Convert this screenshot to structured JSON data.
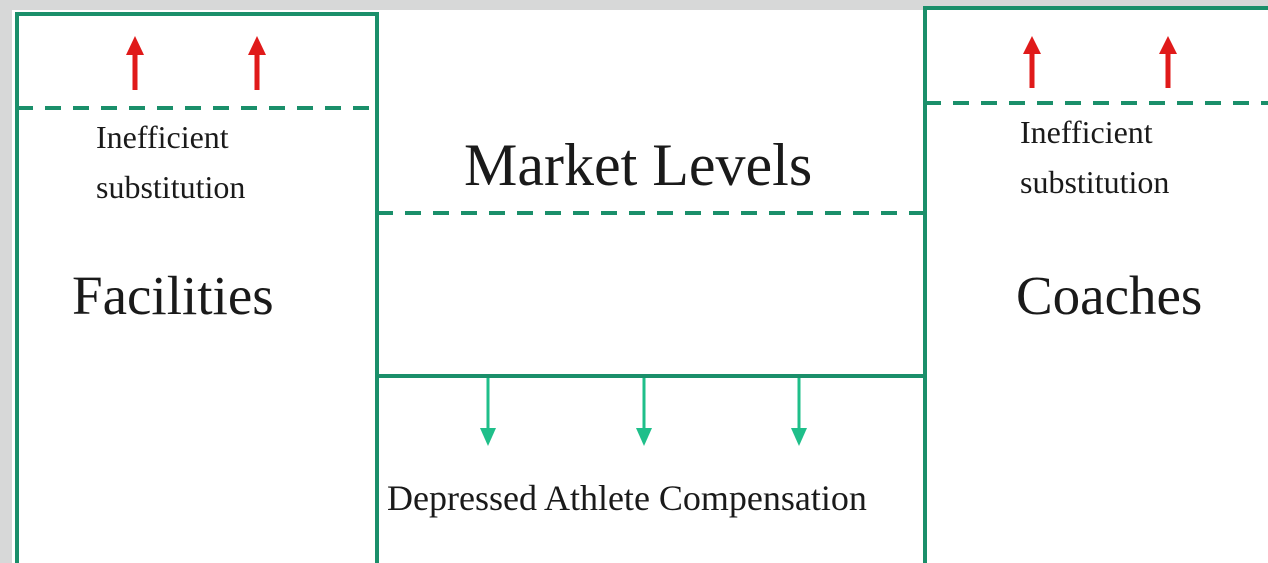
{
  "diagram": {
    "left_column": {
      "top_note": "Inefficient",
      "top_note_line2": "substitution",
      "title": "Facilities"
    },
    "center_column": {
      "title": "Market Levels",
      "bottom_note": "Depressed Athlete Compensation"
    },
    "right_column": {
      "top_note": "Inefficient",
      "top_note_line2": "substitution",
      "title": "Coaches"
    },
    "colors": {
      "background": "#d7d8d8",
      "panel": "#ffffff",
      "border": "#1a8f6a",
      "up_arrow": "#e01a1a",
      "down_arrow": "#1fbf8a",
      "text": "#1a1a1a"
    },
    "arrows": {
      "left_up_count": 2,
      "right_up_count": 2,
      "center_down_count": 3
    }
  }
}
